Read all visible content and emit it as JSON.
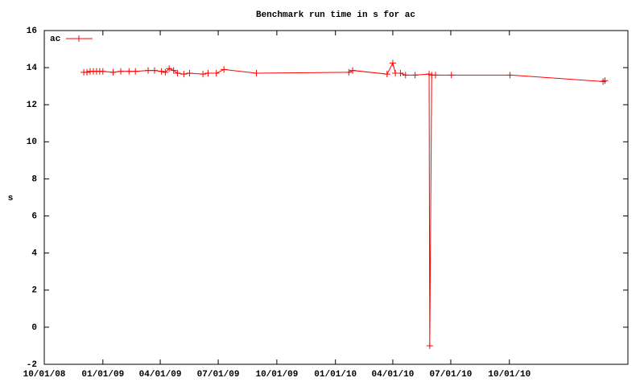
{
  "chart_data": {
    "type": "line",
    "title": "Benchmark run time in s for ac",
    "y_label": "s",
    "x": [
      "12/02/08",
      "12/07/08",
      "12/12/08",
      "12/17/08",
      "12/22/08",
      "12/27/08",
      "01/01/09",
      "01/17/09",
      "01/29/09",
      "02/11/09",
      "02/21/09",
      "03/13/09",
      "03/23/09",
      "04/03/09",
      "04/09/09",
      "04/15/09",
      "04/22/09",
      "04/28/09",
      "05/08/09",
      "05/17/09",
      "06/07/09",
      "06/15/09",
      "06/28/09",
      "07/10/09",
      "08/30/09",
      "01/22/10",
      "01/28/10",
      "03/23/10",
      "04/01/10",
      "04/05/10",
      "04/13/10",
      "04/21/10",
      "05/06/10",
      "05/28/10",
      "05/29/10",
      "06/01/10",
      "06/07/10",
      "07/02/10",
      "10/02/10",
      "02/25/11",
      "02/28/11"
    ],
    "series": [
      {
        "name": "ac",
        "color": "#ff0000",
        "values": [
          13.75,
          13.75,
          13.8,
          13.8,
          13.8,
          13.8,
          13.8,
          13.75,
          13.8,
          13.8,
          13.8,
          13.85,
          13.85,
          13.8,
          13.75,
          13.95,
          13.85,
          13.7,
          13.65,
          13.7,
          13.65,
          13.7,
          13.7,
          13.9,
          13.7,
          13.75,
          13.85,
          13.65,
          14.25,
          13.7,
          13.7,
          13.6,
          13.6,
          13.65,
          -1,
          13.6,
          13.6,
          13.6,
          13.6,
          13.25,
          13.3
        ]
      }
    ],
    "xlim": [
      "10/01/08",
      "04/05/11"
    ],
    "xticks": [
      "10/01/08",
      "01/01/09",
      "04/01/09",
      "07/01/09",
      "10/01/09",
      "01/01/10",
      "04/01/10",
      "07/01/10",
      "10/01/10"
    ],
    "ylim": [
      -2,
      16
    ],
    "yticks": [
      -2,
      0,
      2,
      4,
      6,
      8,
      10,
      12,
      14,
      16
    ],
    "legend": "top-left"
  }
}
